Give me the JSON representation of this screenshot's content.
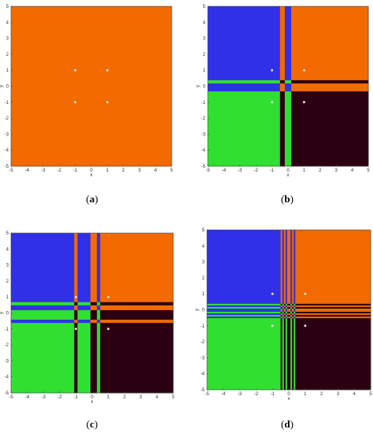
{
  "figure": {
    "panels": [
      {
        "label_prefix": "(",
        "label": "a",
        "label_suffix": ")"
      },
      {
        "label_prefix": "(",
        "label": "b",
        "label_suffix": ")"
      },
      {
        "label_prefix": "(",
        "label": "c",
        "label_suffix": ")"
      },
      {
        "label_prefix": "(",
        "label": "d",
        "label_suffix": ")"
      }
    ]
  },
  "chart_data": [
    {
      "type": "heatmap",
      "title": "",
      "xlabel": "x",
      "ylabel": "y",
      "xlim": [
        -5,
        5
      ],
      "ylim": [
        -5,
        5
      ],
      "xticks": [
        -5,
        -4,
        -3,
        -2,
        -1,
        0,
        1,
        2,
        3,
        4,
        5
      ],
      "yticks": [
        -5,
        -4,
        -3,
        -2,
        -1,
        0,
        1,
        2,
        3,
        4,
        5
      ],
      "colors": {
        "class_blue": "#3030e8",
        "class_orange": "#f26a00",
        "class_green": "#30e030",
        "class_dark": "#2b0010",
        "marker": "#e0e0e0"
      },
      "x_breaks": [],
      "y_breaks": [],
      "markers": [
        [
          -1,
          1
        ],
        [
          1,
          1
        ],
        [
          -1,
          -1
        ],
        [
          1,
          -1
        ]
      ]
    },
    {
      "type": "heatmap",
      "title": "",
      "xlabel": "x",
      "ylabel": "y",
      "xlim": [
        -5,
        5
      ],
      "ylim": [
        -5,
        5
      ],
      "xticks": [
        -5,
        -4,
        -3,
        -2,
        -1,
        0,
        1,
        2,
        3,
        4,
        5
      ],
      "yticks": [
        -5,
        -4,
        -3,
        -2,
        -1,
        0,
        1,
        2,
        3,
        4,
        5
      ],
      "colors": {
        "class_blue": "#3030e8",
        "class_orange": "#f26a00",
        "class_green": "#30e030",
        "class_dark": "#2b0010",
        "marker": "#e0e0e0"
      },
      "x_breaks": [
        -0.5,
        -0.2,
        0,
        0.2
      ],
      "y_breaks": [
        -0.3,
        -0.1,
        0.2,
        0.4
      ],
      "markers": [
        [
          -1,
          1
        ],
        [
          1,
          1
        ],
        [
          -1,
          -1
        ],
        [
          1,
          -1
        ]
      ]
    },
    {
      "type": "heatmap",
      "title": "",
      "xlabel": "x",
      "ylabel": "y",
      "xlim": [
        -5,
        5
      ],
      "ylim": [
        -5,
        5
      ],
      "xticks": [
        -5,
        -4,
        -3,
        -2,
        -1,
        0,
        1,
        2,
        3,
        4,
        5
      ],
      "yticks": [
        -5,
        -4,
        -3,
        -2,
        -1,
        0,
        1,
        2,
        3,
        4,
        5
      ],
      "colors": {
        "class_blue": "#3030e8",
        "class_orange": "#f26a00",
        "class_green": "#30e030",
        "class_dark": "#2b0010",
        "marker": "#e0e0e0"
      },
      "x_breaks": [
        -1.1,
        -0.9,
        -0.1,
        0,
        0.3,
        0.5
      ],
      "y_breaks": [
        -0.6,
        -0.4,
        0,
        0.2,
        0.5,
        0.7
      ],
      "markers": [
        [
          -1,
          1
        ],
        [
          1,
          1
        ],
        [
          -1,
          -1
        ],
        [
          1,
          -1
        ]
      ]
    },
    {
      "type": "heatmap",
      "title": "",
      "xlabel": "x",
      "ylabel": "y",
      "xlim": [
        -5,
        5
      ],
      "ylim": [
        -5,
        5
      ],
      "xticks": [
        -5,
        -4,
        -3,
        -2,
        -1,
        0,
        1,
        2,
        3,
        4,
        5
      ],
      "yticks": [
        -5,
        -4,
        -3,
        -2,
        -1,
        0,
        1,
        2,
        3,
        4,
        5
      ],
      "colors": {
        "class_blue": "#3030e8",
        "class_orange": "#f26a00",
        "class_green": "#30e030",
        "class_dark": "#2b0010",
        "marker": "#e0e0e0"
      },
      "x_breaks": [
        -0.5,
        -0.4,
        -0.3,
        -0.2,
        -0.1,
        0,
        0.1,
        0.2,
        0.3,
        0.4,
        0.5
      ],
      "y_breaks": [
        -0.5,
        -0.4,
        -0.3,
        -0.2,
        -0.1,
        0,
        0.1,
        0.2,
        0.3,
        0.4,
        0.5
      ],
      "markers": [
        [
          -1,
          1
        ],
        [
          1,
          1
        ],
        [
          -1,
          -1
        ],
        [
          1,
          -1
        ]
      ]
    }
  ]
}
